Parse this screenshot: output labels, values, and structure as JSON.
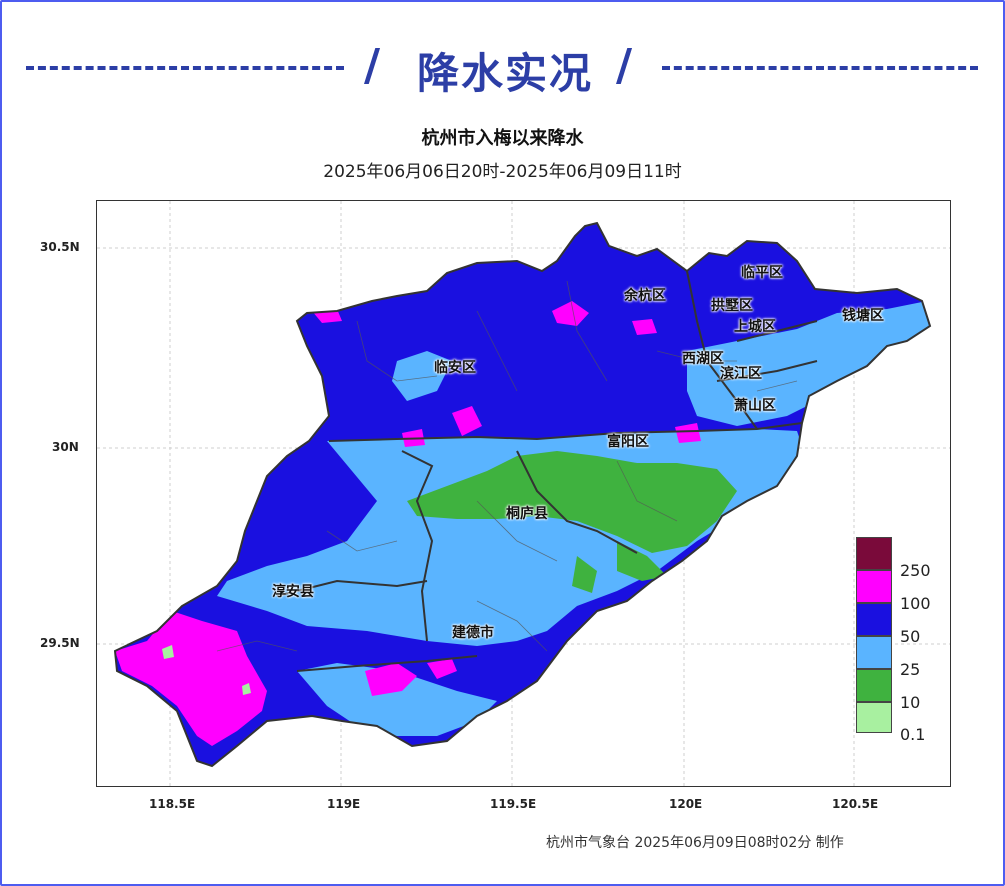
{
  "header": {
    "title": "降水实况",
    "slash": "/"
  },
  "map": {
    "title": "杭州市入梅以来降水",
    "subtitle": "2025年06月06日20时-2025年06月09日11时",
    "y_ticks": [
      "30.5N",
      "30N",
      "29.5N"
    ],
    "x_ticks": [
      "118.5E",
      "119E",
      "119.5E",
      "120E",
      "120.5E"
    ],
    "districts": [
      "临平区",
      "余杭区",
      "拱墅区",
      "上城区",
      "钱塘区",
      "西湖区",
      "滨江区",
      "临安区",
      "萧山区",
      "富阳区",
      "桐庐县",
      "淳安县",
      "建德市"
    ],
    "legend": {
      "labels": [
        "250",
        "100",
        "50",
        "25",
        "10",
        "0.1"
      ],
      "colors": [
        "#7a0a3a",
        "#ff00ff",
        "#1a10e0",
        "#5ab4ff",
        "#3fb23f",
        "#a8f0a0"
      ]
    },
    "credit": "杭州市气象台 2025年06月09日08时02分 制作"
  }
}
